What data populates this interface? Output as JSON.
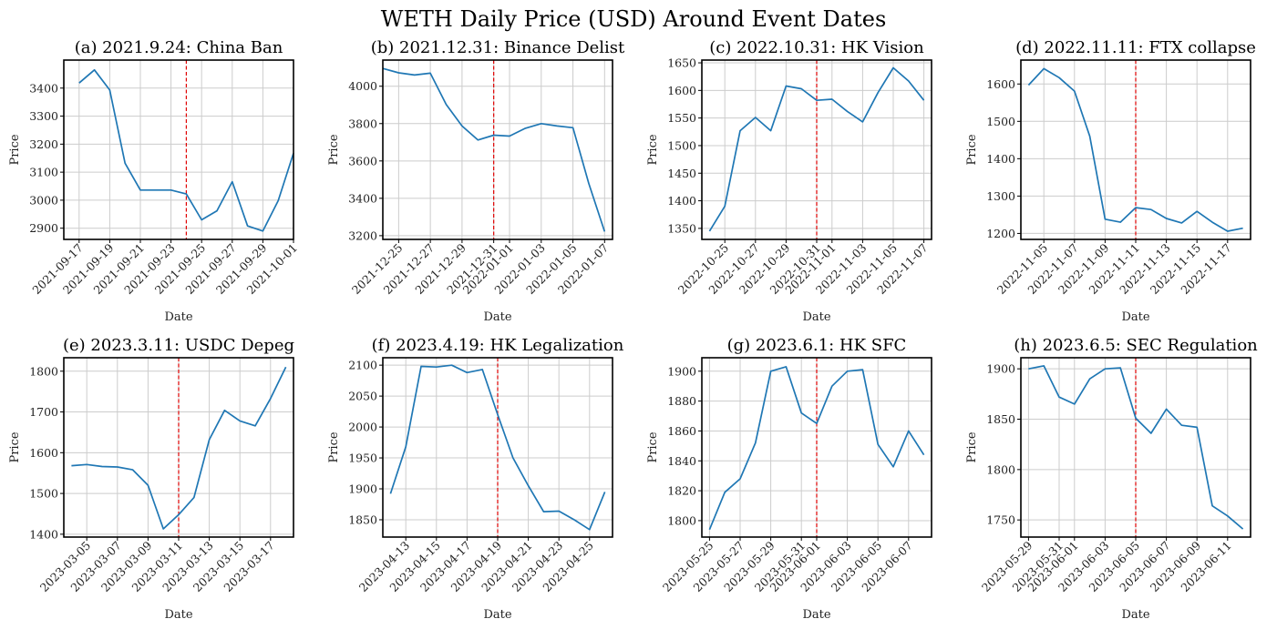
{
  "figure_title": "WETH Daily Price (USD) Around Event Dates",
  "colors": {
    "series": "#1f77b4",
    "event_line": "#e00000",
    "grid": "#cccccc"
  },
  "chart_data": [
    {
      "type": "line",
      "title": "(a) 2021.9.24: China Ban",
      "xlabel": "Date",
      "ylabel": "Price",
      "x": [
        "2021-09-17",
        "2021-09-18",
        "2021-09-19",
        "2021-09-20",
        "2021-09-21",
        "2021-09-22",
        "2021-09-23",
        "2021-09-24",
        "2021-09-25",
        "2021-09-26",
        "2021-09-27",
        "2021-09-28",
        "2021-09-29",
        "2021-09-30",
        "2021-10-01"
      ],
      "series": [
        {
          "values": [
            3418,
            3465,
            3393,
            3132,
            3036,
            3036,
            3036,
            3022,
            2930,
            2962,
            3066,
            2908,
            2890,
            2998,
            3168
          ]
        }
      ],
      "event_date": "2021-09-24",
      "xticks": [
        "2021-09-17",
        "2021-09-19",
        "2021-09-21",
        "2021-09-23",
        "2021-09-25",
        "2021-09-27",
        "2021-09-29",
        "2021-10-01"
      ],
      "yticks": [
        2900,
        3000,
        3100,
        3200,
        3300,
        3400
      ],
      "ylim": [
        2860,
        3500
      ],
      "xlim": [
        "2021-09-16",
        "2021-10-01"
      ],
      "grid": true
    },
    {
      "type": "line",
      "title": "(b) 2021.12.31: Binance Delist",
      "xlabel": "Date",
      "ylabel": "Price",
      "x": [
        "2021-12-24",
        "2021-12-25",
        "2021-12-26",
        "2021-12-27",
        "2021-12-28",
        "2021-12-29",
        "2021-12-30",
        "2021-12-31",
        "2022-01-01",
        "2022-01-02",
        "2022-01-03",
        "2022-01-04",
        "2022-01-05",
        "2022-01-06",
        "2022-01-07"
      ],
      "series": [
        {
          "values": [
            4095,
            4072,
            4060,
            4070,
            3902,
            3787,
            3712,
            3738,
            3733,
            3775,
            3800,
            3787,
            3778,
            3480,
            3222
          ]
        }
      ],
      "event_date": "2021-12-31",
      "xticks": [
        "2021-12-25",
        "2021-12-27",
        "2021-12-29",
        "2021-12-31",
        "2022-01-01",
        "2022-01-03",
        "2022-01-05",
        "2022-01-07"
      ],
      "yticks": [
        3200,
        3400,
        3600,
        3800,
        4000
      ],
      "ylim": [
        3180,
        4140
      ],
      "xlim": [
        "2021-12-24",
        "2022-01-07.5"
      ],
      "grid": true
    },
    {
      "type": "line",
      "title": "(c) 2022.10.31: HK Vision",
      "xlabel": "Date",
      "ylabel": "Price",
      "x": [
        "2022-10-24",
        "2022-10-25",
        "2022-10-26",
        "2022-10-27",
        "2022-10-28",
        "2022-10-29",
        "2022-10-30",
        "2022-10-31",
        "2022-11-01",
        "2022-11-02",
        "2022-11-03",
        "2022-11-04",
        "2022-11-05",
        "2022-11-06",
        "2022-11-07"
      ],
      "series": [
        {
          "values": [
            1345,
            1390,
            1527,
            1551,
            1527,
            1608,
            1603,
            1582,
            1584,
            1562,
            1543,
            1596,
            1641,
            1617,
            1582
          ]
        }
      ],
      "event_date": "2022-10-31",
      "xticks": [
        "2022-10-25",
        "2022-10-27",
        "2022-10-29",
        "2022-10-31",
        "2022-11-01",
        "2022-11-03",
        "2022-11-05",
        "2022-11-07"
      ],
      "yticks": [
        1350,
        1400,
        1450,
        1500,
        1550,
        1600,
        1650
      ],
      "ylim": [
        1330,
        1655
      ],
      "xlim": [
        "2022-10-23.5",
        "2022-11-07.5"
      ],
      "grid": true
    },
    {
      "type": "line",
      "title": "(d) 2022.11.11: FTX collapse",
      "xlabel": "Date",
      "ylabel": "Price",
      "x": [
        "2022-11-04",
        "2022-11-05",
        "2022-11-06",
        "2022-11-07",
        "2022-11-08",
        "2022-11-09",
        "2022-11-10",
        "2022-11-11",
        "2022-11-12",
        "2022-11-13",
        "2022-11-14",
        "2022-11-15",
        "2022-11-16",
        "2022-11-17",
        "2022-11-18"
      ],
      "series": [
        {
          "values": [
            1597,
            1641,
            1617,
            1581,
            1460,
            1238,
            1230,
            1269,
            1264,
            1240,
            1228,
            1259,
            1230,
            1206,
            1214
          ]
        }
      ],
      "event_date": "2022-11-11",
      "xticks": [
        "2022-11-05",
        "2022-11-07",
        "2022-11-09",
        "2022-11-11",
        "2022-11-13",
        "2022-11-15",
        "2022-11-17"
      ],
      "yticks": [
        1200,
        1300,
        1400,
        1500,
        1600
      ],
      "ylim": [
        1184,
        1664
      ],
      "xlim": [
        "2022-11-03.5",
        "2022-11-18.5"
      ],
      "grid": true
    },
    {
      "type": "line",
      "title": "(e) 2023.3.11: USDC Depeg",
      "xlabel": "Date",
      "ylabel": "Price",
      "x": [
        "2023-03-04",
        "2023-03-05",
        "2023-03-06",
        "2023-03-07",
        "2023-03-08",
        "2023-03-09",
        "2023-03-10",
        "2023-03-11",
        "2023-03-12",
        "2023-03-13",
        "2023-03-14",
        "2023-03-15",
        "2023-03-16",
        "2023-03-17",
        "2023-03-18"
      ],
      "series": [
        {
          "values": [
            1568,
            1571,
            1566,
            1565,
            1558,
            1520,
            1413,
            1448,
            1490,
            1632,
            1704,
            1678,
            1666,
            1733,
            1810
          ]
        }
      ],
      "event_date": "2023-03-11",
      "xticks": [
        "2023-03-05",
        "2023-03-07",
        "2023-03-09",
        "2023-03-11",
        "2023-03-13",
        "2023-03-15",
        "2023-03-17"
      ],
      "yticks": [
        1400,
        1500,
        1600,
        1700,
        1800
      ],
      "ylim": [
        1393,
        1833
      ],
      "xlim": [
        "2023-03-03.5",
        "2023-03-18.5"
      ],
      "grid": true
    },
    {
      "type": "line",
      "title": "(f) 2023.4.19: HK Legalization",
      "xlabel": "Date",
      "ylabel": "Price",
      "x": [
        "2023-04-12",
        "2023-04-13",
        "2023-04-14",
        "2023-04-15",
        "2023-04-16",
        "2023-04-17",
        "2023-04-18",
        "2023-04-19",
        "2023-04-20",
        "2023-04-21",
        "2023-04-22",
        "2023-04-23",
        "2023-04-24",
        "2023-04-25",
        "2023-04-26"
      ],
      "series": [
        {
          "values": [
            1892,
            1968,
            2098,
            2097,
            2100,
            2088,
            2093,
            2020,
            1950,
            1905,
            1863,
            1864,
            1850,
            1834,
            1895
          ]
        }
      ],
      "event_date": "2023-04-19",
      "xticks": [
        "2023-04-13",
        "2023-04-15",
        "2023-04-17",
        "2023-04-19",
        "2023-04-21",
        "2023-04-23",
        "2023-04-25"
      ],
      "yticks": [
        1850,
        1900,
        1950,
        2000,
        2050,
        2100
      ],
      "ylim": [
        1822,
        2112
      ],
      "xlim": [
        "2023-04-11.5",
        "2023-04-26.5"
      ],
      "grid": true
    },
    {
      "type": "line",
      "title": "(g) 2023.6.1: HK SFC",
      "xlabel": "Date",
      "ylabel": "Price",
      "x": [
        "2023-05-25",
        "2023-05-26",
        "2023-05-27",
        "2023-05-28",
        "2023-05-29",
        "2023-05-30",
        "2023-05-31",
        "2023-06-01",
        "2023-06-02",
        "2023-06-03",
        "2023-06-04",
        "2023-06-05",
        "2023-06-06",
        "2023-06-07",
        "2023-06-08"
      ],
      "series": [
        {
          "values": [
            1794,
            1819,
            1828,
            1852,
            1900,
            1903,
            1872,
            1865,
            1890,
            1900,
            1901,
            1851,
            1836,
            1860,
            1844
          ]
        }
      ],
      "event_date": "2023-06-01",
      "xticks": [
        "2023-05-25",
        "2023-05-27",
        "2023-05-29",
        "2023-05-31",
        "2023-06-01",
        "2023-06-03",
        "2023-06-05",
        "2023-06-07"
      ],
      "yticks": [
        1800,
        1820,
        1840,
        1860,
        1880,
        1900
      ],
      "ylim": [
        1789,
        1909
      ],
      "xlim": [
        "2023-05-24.5",
        "2023-06-08.5"
      ],
      "grid": true
    },
    {
      "type": "line",
      "title": "(h) 2023.6.5: SEC Regulation",
      "xlabel": "Date",
      "ylabel": "Price",
      "x": [
        "2023-05-29",
        "2023-05-30",
        "2023-05-31",
        "2023-06-01",
        "2023-06-02",
        "2023-06-03",
        "2023-06-04",
        "2023-06-05",
        "2023-06-06",
        "2023-06-07",
        "2023-06-08",
        "2023-06-09",
        "2023-06-10",
        "2023-06-11",
        "2023-06-12"
      ],
      "series": [
        {
          "values": [
            1900,
            1903,
            1872,
            1865,
            1890,
            1900,
            1901,
            1851,
            1836,
            1860,
            1844,
            1842,
            1764,
            1754,
            1741
          ]
        }
      ],
      "event_date": "2023-06-05",
      "xticks": [
        "2023-05-29",
        "2023-05-31",
        "2023-06-01",
        "2023-06-03",
        "2023-06-05",
        "2023-06-07",
        "2023-06-09",
        "2023-06-11"
      ],
      "yticks": [
        1750,
        1800,
        1850,
        1900
      ],
      "ylim": [
        1733,
        1911
      ],
      "xlim": [
        "2023-05-28.5",
        "2023-06-12.5"
      ],
      "grid": true
    }
  ]
}
